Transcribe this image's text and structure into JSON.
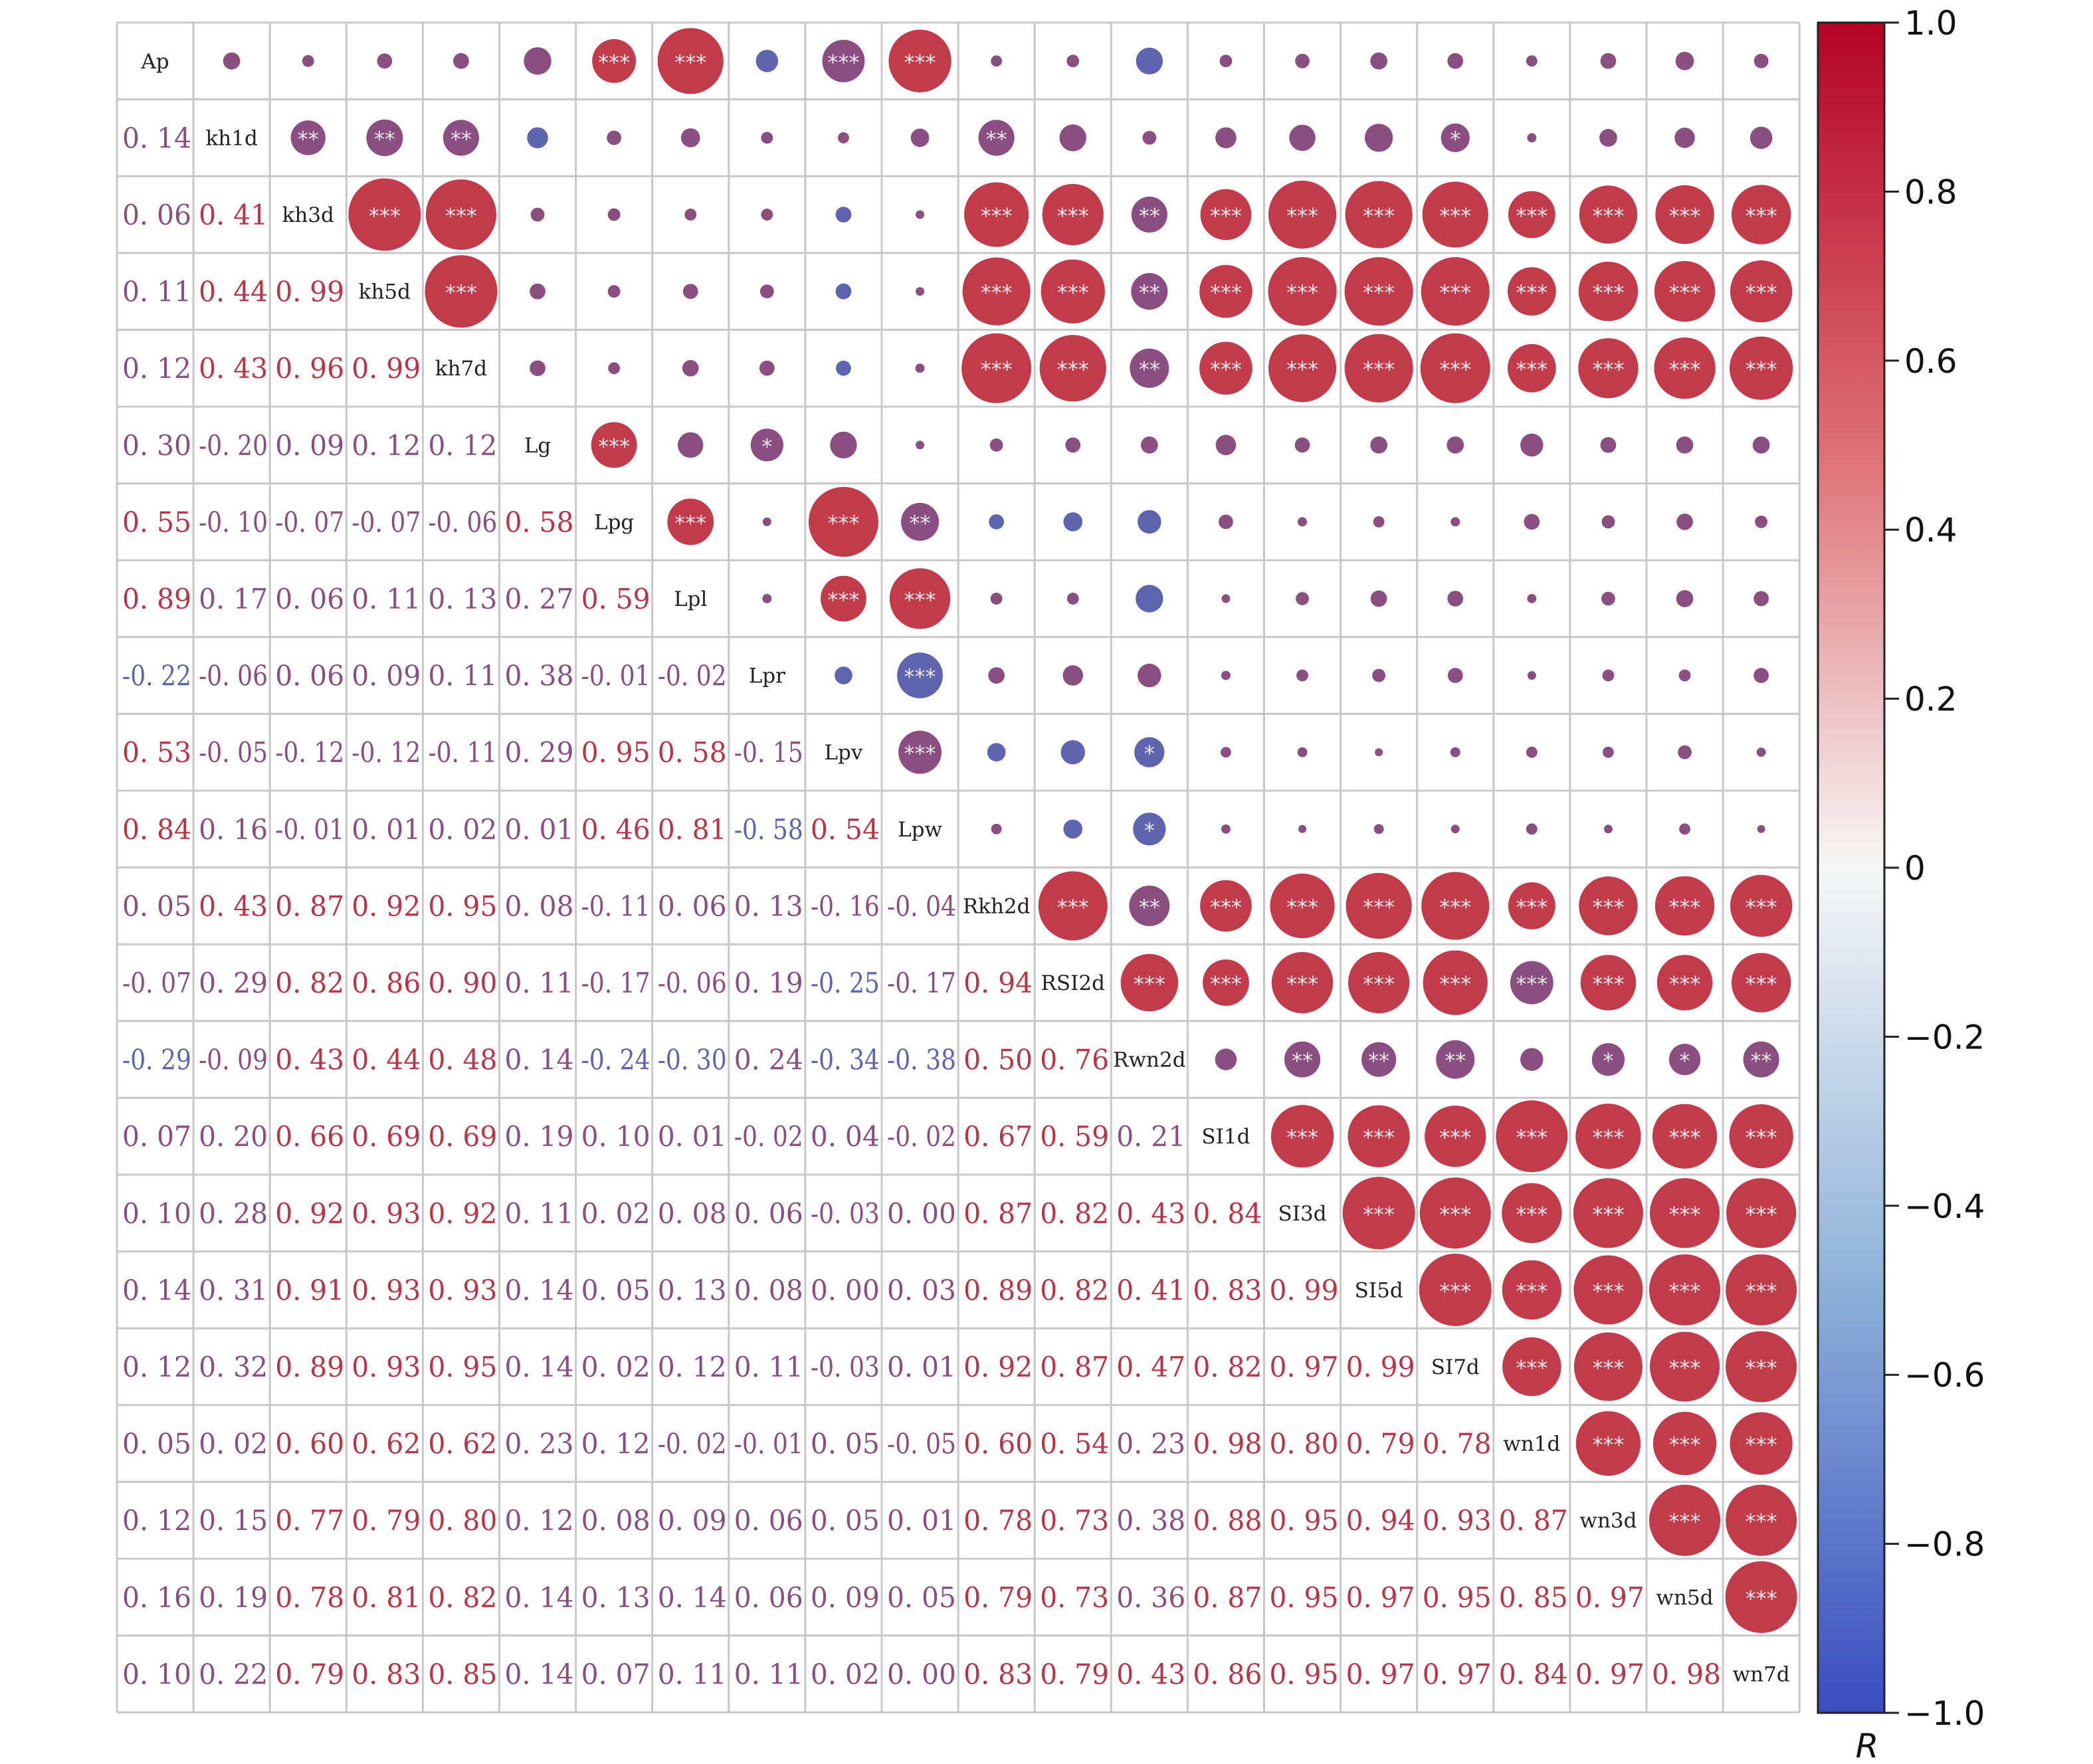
{
  "chart_data": {
    "type": "heatmap",
    "title": "",
    "variables": [
      "Ap",
      "kh1d",
      "kh3d",
      "kh5d",
      "kh7d",
      "Lg",
      "Lpg",
      "Lpl",
      "Lpr",
      "Lpv",
      "Lpw",
      "Rkh2d",
      "RSI2d",
      "Rwn2d",
      "SI1d",
      "SI3d",
      "SI5d",
      "SI7d",
      "wn1d",
      "wn3d",
      "wn5d",
      "wn7d"
    ],
    "lower_triangle": [
      [],
      [
        0.14
      ],
      [
        0.06,
        0.41
      ],
      [
        0.11,
        0.44,
        0.99
      ],
      [
        0.12,
        0.43,
        0.96,
        0.99
      ],
      [
        0.3,
        -0.2,
        0.09,
        0.12,
        0.12
      ],
      [
        0.55,
        -0.1,
        -0.07,
        -0.07,
        -0.06,
        0.58
      ],
      [
        0.89,
        0.17,
        0.06,
        0.11,
        0.13,
        0.27,
        0.59
      ],
      [
        -0.22,
        -0.06,
        0.06,
        0.09,
        0.11,
        0.38,
        -0.01,
        -0.02
      ],
      [
        0.53,
        -0.05,
        -0.12,
        -0.12,
        -0.11,
        0.29,
        0.95,
        0.58,
        -0.15
      ],
      [
        0.84,
        0.16,
        -0.01,
        0.01,
        0.02,
        0.01,
        0.46,
        0.81,
        -0.58,
        0.54
      ],
      [
        0.05,
        0.43,
        0.87,
        0.92,
        0.95,
        0.08,
        -0.11,
        0.06,
        0.13,
        -0.16,
        -0.04
      ],
      [
        -0.07,
        0.29,
        0.82,
        0.86,
        0.9,
        0.11,
        -0.17,
        -0.06,
        0.19,
        -0.25,
        -0.17,
        0.94
      ],
      [
        -0.29,
        -0.09,
        0.43,
        0.44,
        0.48,
        0.14,
        -0.24,
        -0.3,
        0.24,
        -0.34,
        -0.38,
        0.5,
        0.76
      ],
      [
        0.07,
        0.2,
        0.66,
        0.69,
        0.69,
        0.19,
        0.1,
        0.01,
        -0.02,
        0.04,
        -0.02,
        0.67,
        0.59,
        0.21
      ],
      [
        0.1,
        0.28,
        0.92,
        0.93,
        0.92,
        0.11,
        0.02,
        0.08,
        0.06,
        -0.03,
        0.0,
        0.87,
        0.82,
        0.43,
        0.84
      ],
      [
        0.14,
        0.31,
        0.91,
        0.93,
        0.93,
        0.14,
        0.05,
        0.13,
        0.08,
        0.0,
        0.03,
        0.89,
        0.82,
        0.41,
        0.83,
        0.99
      ],
      [
        0.12,
        0.32,
        0.89,
        0.93,
        0.95,
        0.14,
        0.02,
        0.12,
        0.11,
        -0.03,
        0.01,
        0.92,
        0.87,
        0.47,
        0.82,
        0.97,
        0.99
      ],
      [
        0.05,
        0.02,
        0.6,
        0.62,
        0.62,
        0.23,
        0.12,
        -0.02,
        -0.01,
        0.05,
        -0.05,
        0.6,
        0.54,
        0.23,
        0.98,
        0.8,
        0.79,
        0.78
      ],
      [
        0.12,
        0.15,
        0.77,
        0.79,
        0.8,
        0.12,
        0.08,
        0.09,
        0.06,
        0.05,
        0.01,
        0.78,
        0.73,
        0.38,
        0.88,
        0.95,
        0.94,
        0.93,
        0.87
      ],
      [
        0.16,
        0.19,
        0.78,
        0.81,
        0.82,
        0.14,
        0.13,
        0.14,
        0.06,
        0.09,
        0.05,
        0.79,
        0.73,
        0.36,
        0.87,
        0.95,
        0.97,
        0.95,
        0.85,
        0.97
      ],
      [
        0.1,
        0.22,
        0.79,
        0.83,
        0.85,
        0.14,
        0.07,
        0.11,
        0.11,
        0.02,
        0.0,
        0.83,
        0.79,
        0.43,
        0.86,
        0.95,
        0.97,
        0.97,
        0.84,
        0.97,
        0.98
      ]
    ],
    "upper_significance": [
      [
        "",
        "",
        "",
        "",
        "",
        "***",
        "***",
        "",
        "***",
        "***",
        "",
        "",
        "",
        "",
        "",
        "",
        "",
        "",
        "",
        "",
        ""
      ],
      [
        "**",
        "**",
        "**",
        "",
        "",
        "",
        "",
        "",
        "",
        "**",
        "",
        "",
        "",
        "",
        "",
        "*",
        "",
        "",
        "",
        ""
      ],
      [
        "***",
        "***",
        "",
        "",
        "",
        "",
        "",
        "",
        "***",
        "***",
        "**",
        "***",
        "***",
        "***",
        "***",
        "***",
        "***",
        "***",
        "***"
      ],
      [
        "***",
        "",
        "",
        "",
        "",
        "",
        "",
        "***",
        "***",
        "**",
        "***",
        "***",
        "***",
        "***",
        "***",
        "***",
        "***",
        "***"
      ],
      [
        "",
        "",
        "",
        "",
        "",
        "",
        "***",
        "***",
        "**",
        "***",
        "***",
        "***",
        "***",
        "***",
        "***",
        "***",
        "***"
      ],
      [
        "***",
        "",
        "*",
        "",
        "",
        "",
        "",
        "",
        "",
        "",
        "",
        "",
        "",
        "",
        "",
        ""
      ],
      [
        "***",
        "",
        "***",
        "**",
        "",
        "",
        "",
        "",
        "",
        "",
        "",
        "",
        "",
        "",
        ""
      ],
      [
        "",
        "***",
        "***",
        "",
        "",
        "",
        "",
        "",
        "",
        "",
        "",
        "",
        "",
        ""
      ],
      [
        "",
        "***",
        "",
        "",
        "",
        "",
        "",
        "",
        "",
        "",
        "",
        "",
        ""
      ],
      [
        "***",
        "",
        "",
        "*",
        "",
        "",
        "",
        "",
        "",
        "",
        "",
        ""
      ],
      [
        "",
        "",
        "*",
        "",
        "",
        "",
        "",
        "",
        "",
        "",
        ""
      ],
      [
        "***",
        "**",
        "***",
        "***",
        "***",
        "***",
        "***",
        "***",
        "***",
        "***"
      ],
      [
        "***",
        "***",
        "***",
        "***",
        "***",
        "***",
        "***",
        "***",
        "***"
      ],
      [
        "",
        "**",
        "**",
        "**",
        "",
        "*",
        "*",
        "**"
      ],
      [
        "***",
        "***",
        "***",
        "***",
        "***",
        "***",
        "***"
      ],
      [
        "***",
        "***",
        "***",
        "***",
        "***",
        "***"
      ],
      [
        "***",
        "***",
        "***",
        "***",
        "***"
      ],
      [
        "***",
        "***",
        "***",
        "***"
      ],
      [
        "***",
        "***",
        "***"
      ],
      [
        "***",
        "***"
      ],
      [
        "***"
      ]
    ],
    "colorbar": {
      "label": "R",
      "ticks": [
        "1.0",
        "0.8",
        "0.6",
        "0.4",
        "0.2",
        "0",
        "−0.2",
        "−0.4",
        "−0.6",
        "−0.8",
        "−1.0"
      ],
      "tick_values": [
        1.0,
        0.8,
        0.6,
        0.4,
        0.2,
        0,
        -0.2,
        -0.4,
        -0.6,
        -0.8,
        -1.0
      ],
      "range": [
        -1.0,
        1.0
      ],
      "colors": {
        "neg": "#3b6fb6",
        "mid": "#f7f7f7",
        "pos": "#c33a49"
      }
    },
    "marker_colors": {
      "strong_pos": "#c23b4a",
      "weak": "#8a4e80",
      "negative": "#5e64ad"
    }
  }
}
